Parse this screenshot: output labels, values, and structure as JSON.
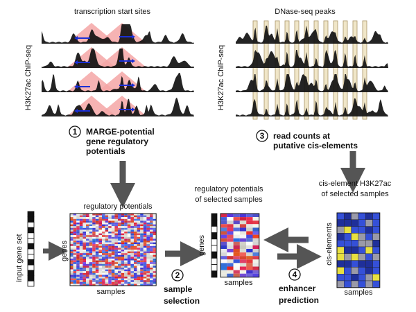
{
  "panel1": {
    "title": "transcription start sites",
    "ylabel": "H3K27ac ChIP-seq",
    "step_number": "1",
    "step_line1": "MARGE-potential",
    "step_line2": "gene regulatory",
    "step_line3": "potentials"
  },
  "panel3": {
    "title": "DNase-seq peaks",
    "ylabel": "H3K27ac ChIP-seq",
    "step_number": "3",
    "step_line1": "read counts at",
    "step_line2": "putative cis-elements"
  },
  "left_matrix": {
    "title": "regulatory potentials",
    "ylabel": "genes",
    "xlabel": "samples",
    "gene_set_label": "input gene set"
  },
  "middle_matrix": {
    "title_line1": "regulatory potentials",
    "title_line2": "of selected samples",
    "ylabel": "genes",
    "xlabel": "samples"
  },
  "right_matrix": {
    "title_line1": "cis-element H3K27ac",
    "title_line2": "of selected samples",
    "ylabel": "cis-elements",
    "xlabel": "samples"
  },
  "step2": {
    "number": "2",
    "line1": "sample",
    "line2": "selection"
  },
  "step4": {
    "number": "4",
    "line1": "enhancer",
    "line2": "prediction"
  },
  "colors": {
    "signal": "#111111",
    "tss_fill": "#f4a6a6",
    "tss_arrow": "#1b2fd6",
    "peak_fill": "#f0e6c8",
    "peak_stroke": "#a89468",
    "arrow": "#555555",
    "heat_red": "#d62020",
    "heat_blue": "#2838c8",
    "heat_white": "#ffffff",
    "cis_dark": "#1f2f9a",
    "cis_blue": "#3550d8",
    "cis_gray": "#9a9aa8",
    "cis_yellow": "#e8e040"
  }
}
